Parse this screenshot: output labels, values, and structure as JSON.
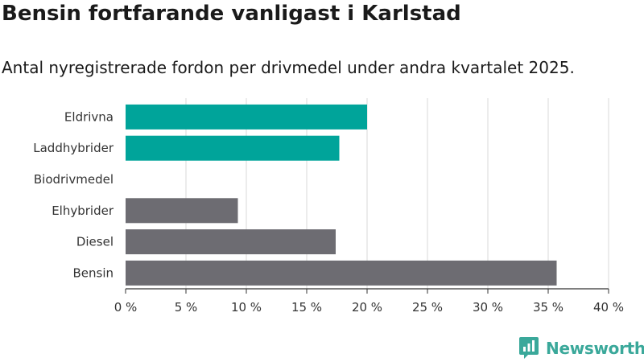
{
  "title": "Bensin fortfarande vanligast i Karlstad",
  "subtitle": "Antal nyregistrerade fordon per drivmedel under andra kvartalet 2025.",
  "brand": {
    "name": "Newsworthy",
    "icon": "newsworthy-logo-icon",
    "color": "#3aa89a"
  },
  "colors": {
    "highlight": "#00a49a",
    "default": "#6d6c72",
    "grid": "#d9d9d9",
    "axis": "#333333"
  },
  "chart_data": {
    "type": "bar",
    "orientation": "horizontal",
    "title": "Bensin fortfarande vanligast i Karlstad",
    "subtitle": "Antal nyregistrerade fordon per drivmedel under andra kvartalet 2025.",
    "categories": [
      "Eldrivna",
      "Laddhybrider",
      "Biodrivmedel",
      "Elhybrider",
      "Diesel",
      "Bensin"
    ],
    "values": [
      20.0,
      17.7,
      0,
      9.3,
      17.4,
      35.7
    ],
    "bar_colors": [
      "#00a49a",
      "#00a49a",
      "#00a49a",
      "#6d6c72",
      "#6d6c72",
      "#6d6c72"
    ],
    "xlim": [
      0,
      40
    ],
    "xticks": [
      0,
      5,
      10,
      15,
      20,
      25,
      30,
      35,
      40
    ],
    "xtick_labels": [
      "0 %",
      "5 %",
      "10 %",
      "15 %",
      "20 %",
      "25 %",
      "30 %",
      "35 %",
      "40 %"
    ],
    "xlabel": "",
    "ylabel": "",
    "grid": true,
    "legend": "none"
  }
}
